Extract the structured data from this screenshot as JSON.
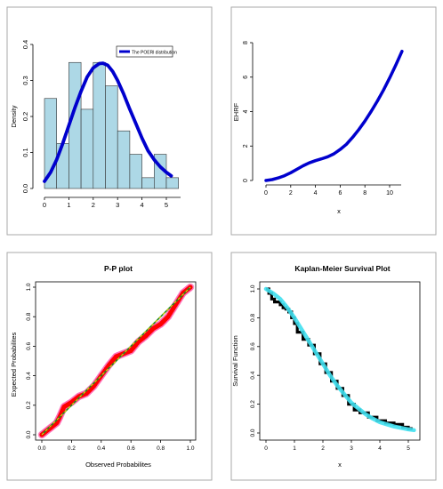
{
  "colors": {
    "hist_fill": "#add8e6",
    "hist_stroke": "#333333",
    "density_line": "#0000cd",
    "ehrf_line": "#0000cd",
    "pp_main": "#ff0000",
    "pp_halo": "#ff69b4",
    "pp_ref": "#228b22",
    "pp_ref_dash": "#ffd700",
    "km_empirical": "#000000",
    "km_fitted": "#40e0f0",
    "frame": "#aaaaaa"
  },
  "chart_data": [
    {
      "type": "bar",
      "title": "",
      "xlabel": "",
      "ylabel": "Density",
      "xlim": [
        0,
        5.5
      ],
      "ylim": [
        0,
        0.4
      ],
      "x_ticks": [
        "0",
        "1",
        "2",
        "3",
        "4",
        "5"
      ],
      "y_ticks": [
        "0.0",
        "0.1",
        "0.2",
        "0.3",
        "0.4"
      ],
      "bins": [
        [
          0,
          0.5
        ],
        [
          0.5,
          1
        ],
        [
          1,
          1.5
        ],
        [
          1.5,
          2
        ],
        [
          2,
          2.5
        ],
        [
          2.5,
          3
        ],
        [
          3,
          3.5
        ],
        [
          3.5,
          4
        ],
        [
          4,
          4.5
        ],
        [
          4.5,
          5
        ],
        [
          5,
          5.5
        ]
      ],
      "values": [
        0.25,
        0.125,
        0.35,
        0.22,
        0.35,
        0.285,
        0.16,
        0.095,
        0.03,
        0.095,
        0.03
      ],
      "legend": {
        "position": "top-right",
        "entries": [
          "The POERl distribution"
        ]
      },
      "series": [
        {
          "name": "The POERl distribution",
          "type": "line",
          "x": [
            0,
            0.25,
            0.5,
            0.75,
            1.0,
            1.25,
            1.5,
            1.75,
            2.0,
            2.25,
            2.4,
            2.6,
            2.8,
            3.0,
            3.25,
            3.5,
            3.75,
            4.0,
            4.25,
            4.5,
            4.75,
            5.0,
            5.2
          ],
          "y": [
            0.02,
            0.045,
            0.08,
            0.125,
            0.175,
            0.225,
            0.27,
            0.31,
            0.335,
            0.347,
            0.348,
            0.342,
            0.325,
            0.3,
            0.262,
            0.22,
            0.18,
            0.14,
            0.105,
            0.08,
            0.06,
            0.045,
            0.035
          ]
        }
      ]
    },
    {
      "type": "line",
      "title": "",
      "xlabel": "x",
      "ylabel": "EHRF",
      "xlim": [
        0,
        11
      ],
      "ylim": [
        0,
        8
      ],
      "x_ticks": [
        "0",
        "2",
        "4",
        "6",
        "8",
        "10"
      ],
      "y_ticks": [
        "0",
        "2",
        "4",
        "6",
        "8"
      ],
      "x": [
        0,
        0.5,
        1,
        1.5,
        2,
        2.5,
        3,
        3.5,
        4,
        4.5,
        5,
        5.5,
        6,
        6.5,
        7,
        7.5,
        8,
        8.5,
        9,
        9.5,
        10,
        10.5,
        11
      ],
      "y": [
        0,
        0.05,
        0.15,
        0.28,
        0.45,
        0.65,
        0.85,
        1.02,
        1.15,
        1.26,
        1.38,
        1.55,
        1.8,
        2.1,
        2.5,
        2.95,
        3.45,
        4.0,
        4.6,
        5.25,
        5.95,
        6.7,
        7.5
      ]
    },
    {
      "type": "scatter",
      "title": "P-P plot",
      "xlabel": "Observed Probabilites",
      "ylabel": "Expected Probabilites",
      "xlim": [
        0,
        1
      ],
      "ylim": [
        0,
        1
      ],
      "x_ticks": [
        "0.0",
        "0.2",
        "0.4",
        "0.6",
        "0.8",
        "1.0"
      ],
      "y_ticks": [
        "0.0",
        "0.2",
        "0.4",
        "0.6",
        "0.8",
        "1.0"
      ],
      "x": [
        0,
        0.05,
        0.1,
        0.12,
        0.15,
        0.2,
        0.25,
        0.3,
        0.35,
        0.4,
        0.45,
        0.5,
        0.55,
        0.6,
        0.65,
        0.7,
        0.75,
        0.8,
        0.85,
        0.9,
        0.95,
        1.0
      ],
      "y": [
        0.0,
        0.04,
        0.08,
        0.12,
        0.19,
        0.22,
        0.26,
        0.28,
        0.33,
        0.4,
        0.47,
        0.53,
        0.55,
        0.57,
        0.63,
        0.67,
        0.72,
        0.75,
        0.8,
        0.88,
        0.96,
        1.0
      ],
      "reference_line": [
        [
          0,
          0
        ],
        [
          1,
          1
        ]
      ]
    },
    {
      "type": "line",
      "title": "Kaplan-Meier Survival Plot",
      "xlabel": "x",
      "ylabel": "Survival  Function",
      "xlim": [
        0,
        5.2
      ],
      "ylim": [
        0,
        1
      ],
      "x_ticks": [
        "0",
        "1",
        "2",
        "3",
        "4",
        "5"
      ],
      "y_ticks": [
        "0.0",
        "0.2",
        "0.4",
        "0.6",
        "0.8",
        "1.0"
      ],
      "series": [
        {
          "type": "step",
          "x": [
            0,
            0.1,
            0.2,
            0.3,
            0.5,
            0.6,
            0.7,
            0.8,
            0.9,
            1.0,
            1.1,
            1.3,
            1.5,
            1.7,
            1.9,
            2.1,
            2.3,
            2.5,
            2.7,
            2.9,
            3.1,
            3.3,
            3.6,
            3.9,
            4.2,
            4.5,
            4.8,
            5.0,
            5.1
          ],
          "y": [
            1.0,
            0.97,
            0.93,
            0.91,
            0.89,
            0.87,
            0.86,
            0.84,
            0.8,
            0.76,
            0.7,
            0.65,
            0.61,
            0.55,
            0.48,
            0.42,
            0.36,
            0.31,
            0.26,
            0.2,
            0.16,
            0.14,
            0.11,
            0.085,
            0.07,
            0.06,
            0.04,
            0.03,
            0.02
          ]
        },
        {
          "type": "line",
          "x": [
            0,
            0.25,
            0.5,
            0.75,
            1.0,
            1.25,
            1.5,
            1.75,
            2.0,
            2.25,
            2.5,
            2.75,
            3.0,
            3.25,
            3.5,
            3.75,
            4.0,
            4.25,
            4.5,
            4.75,
            5.0,
            5.2
          ],
          "y": [
            1.0,
            0.97,
            0.93,
            0.87,
            0.8,
            0.72,
            0.64,
            0.56,
            0.48,
            0.4,
            0.33,
            0.27,
            0.21,
            0.17,
            0.13,
            0.1,
            0.075,
            0.06,
            0.045,
            0.035,
            0.025,
            0.02
          ]
        }
      ]
    }
  ]
}
